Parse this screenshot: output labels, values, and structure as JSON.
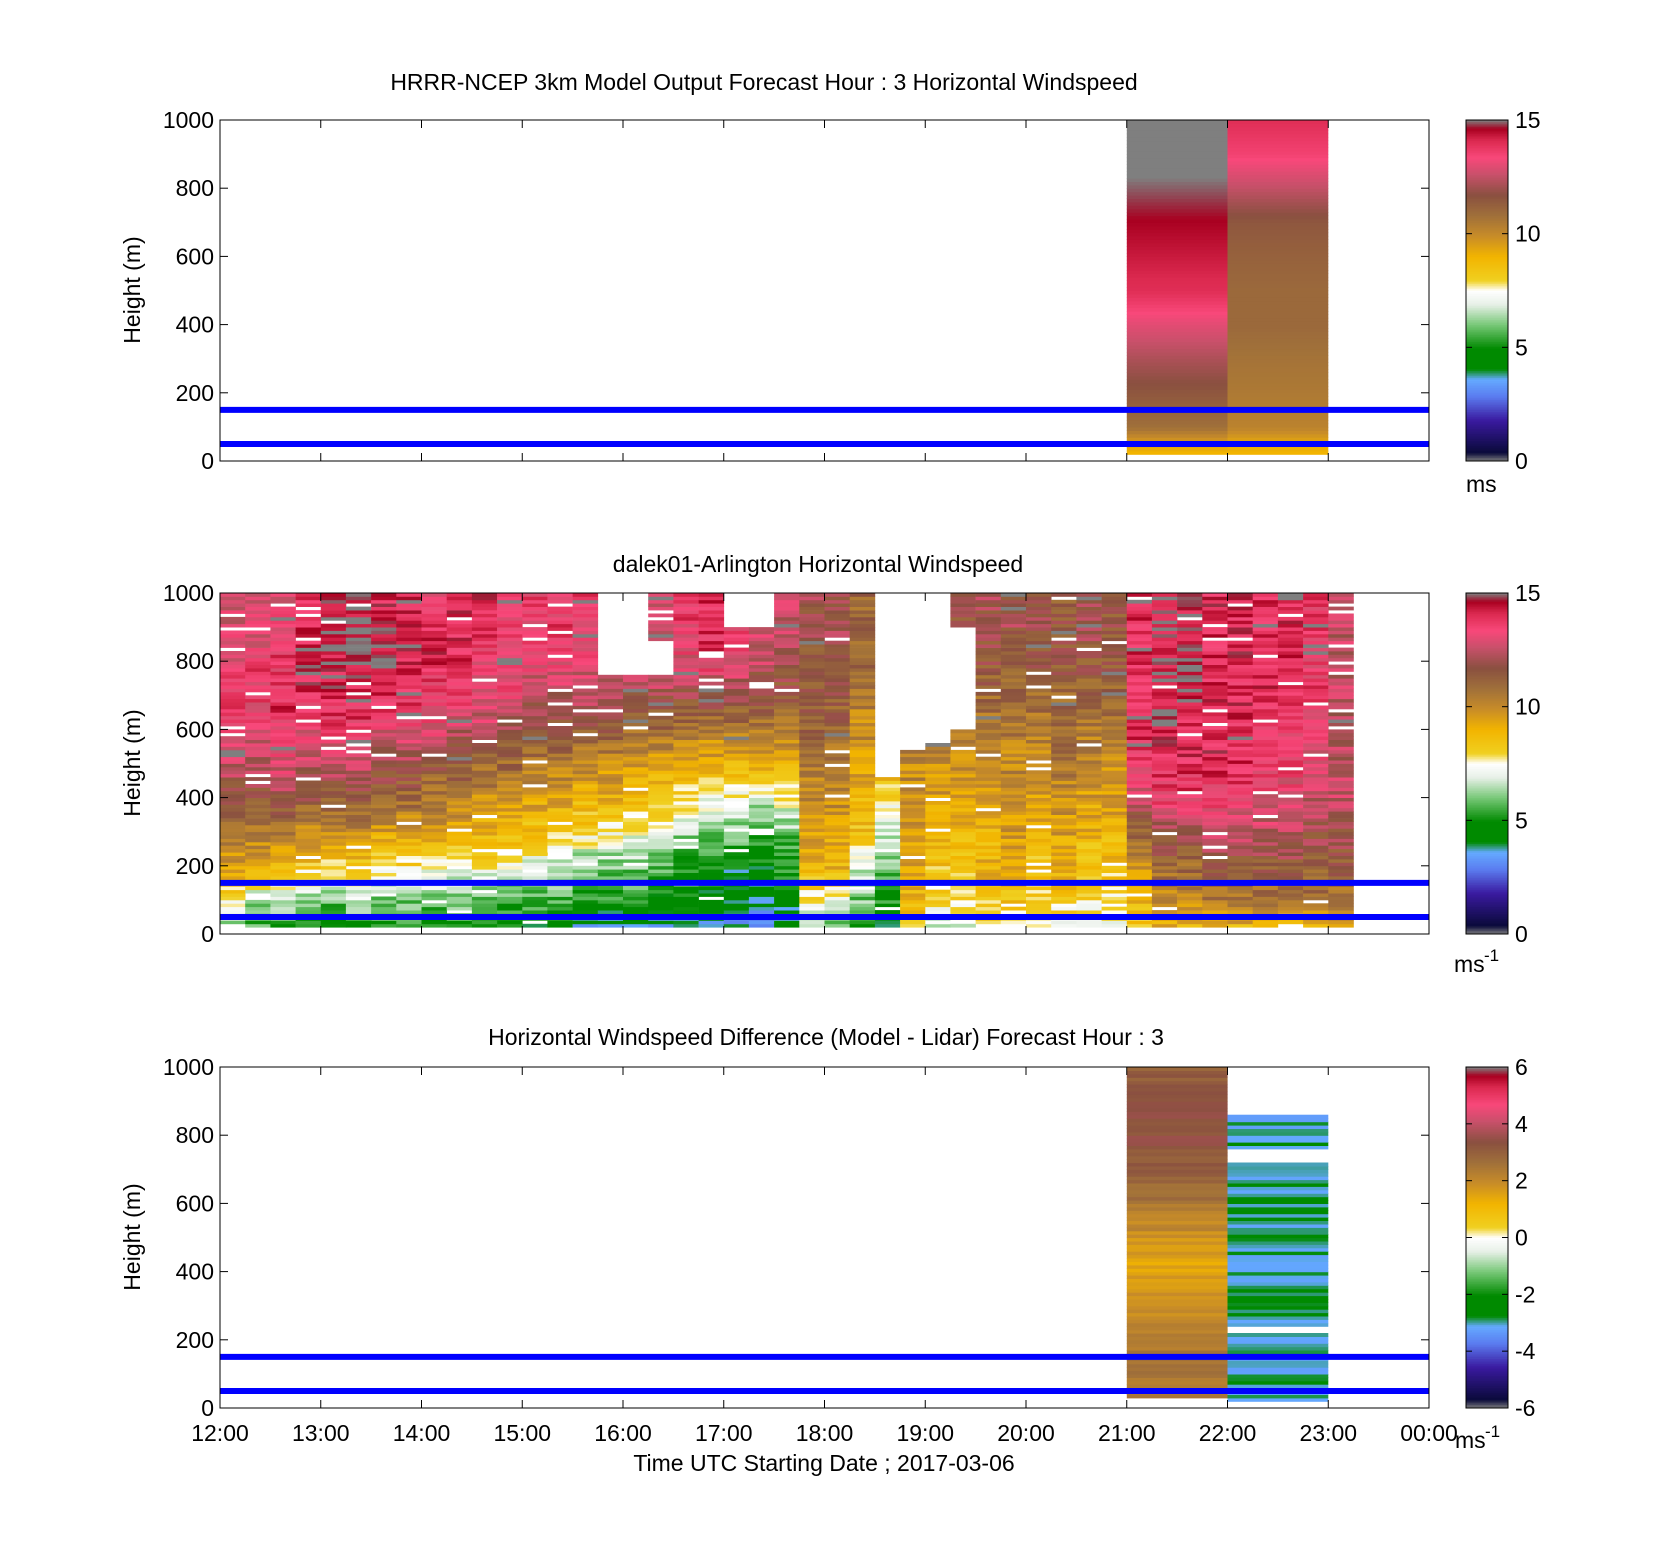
{
  "figure": {
    "xlabel": "Time UTC  Starting Date ; 2017-03-06",
    "xticks": [
      "12:00",
      "13:00",
      "14:00",
      "15:00",
      "16:00",
      "17:00",
      "18:00",
      "19:00",
      "20:00",
      "21:00",
      "22:00",
      "23:00",
      "00:00"
    ],
    "reference_lines_m": [
      50,
      150
    ],
    "reference_line_color": "#0000ff"
  },
  "chart_data": [
    {
      "type": "heatmap",
      "title": "HRRR-NCEP 3km Model Output   Forecast Hour : 3 Horizontal Windspeed",
      "ylabel": "Height (m)",
      "xlim_hours_utc": [
        12,
        24
      ],
      "ylim": [
        0,
        1000
      ],
      "yticks": [
        0,
        200,
        400,
        600,
        800,
        1000
      ],
      "colorbar": {
        "range": [
          0,
          15
        ],
        "ticks": [
          "0",
          "5",
          "10",
          "15"
        ],
        "unit": "ms"
      },
      "columns": [
        {
          "start_utc": "21:00",
          "end_utc": "22:00",
          "profile": [
            [
              25,
              9
            ],
            [
              55,
              9.5
            ],
            [
              100,
              10.8
            ],
            [
              200,
              11.5
            ],
            [
              300,
              12.2
            ],
            [
              400,
              13
            ],
            [
              500,
              14
            ],
            [
              600,
              14.3
            ],
            [
              700,
              14.6
            ],
            [
              800,
              14.9
            ],
            [
              900,
              15.2
            ],
            [
              1000,
              15.2
            ]
          ]
        },
        {
          "start_utc": "22:00",
          "end_utc": "23:00",
          "profile": [
            [
              25,
              9
            ],
            [
              55,
              9.3
            ],
            [
              100,
              10.2
            ],
            [
              200,
              10.5
            ],
            [
              300,
              10.7
            ],
            [
              400,
              11
            ],
            [
              500,
              11
            ],
            [
              600,
              11.2
            ],
            [
              700,
              11.5
            ],
            [
              800,
              12.5
            ],
            [
              900,
              13.5
            ],
            [
              1000,
              14
            ]
          ]
        }
      ]
    },
    {
      "type": "heatmap",
      "title": "dalek01-Arlington  Horizontal Windspeed",
      "ylabel": "Height (m)",
      "xlim_hours_utc": [
        12,
        24
      ],
      "ylim": [
        0,
        1000
      ],
      "yticks": [
        0,
        200,
        400,
        600,
        800,
        1000
      ],
      "colorbar": {
        "range": [
          0,
          15
        ],
        "ticks": [
          "0",
          "5",
          "10",
          "15"
        ],
        "unit": "ms",
        "unit_exponent": "-1"
      },
      "time_step_minutes": 15,
      "top_height_m": [
        1000,
        1000,
        1000,
        1000,
        1000,
        1000,
        1000,
        1000,
        1000,
        1000,
        1000,
        1000,
        1000,
        1000,
        1000,
        1000,
        1000,
        1000,
        1000,
        1000,
        1000,
        1000,
        1000,
        1000,
        1000,
        1000,
        1000,
        1000,
        1000,
        1000,
        1000,
        1000,
        1000,
        1000,
        1000,
        1000,
        1000,
        1000,
        1000,
        1000,
        1000,
        1000,
        1000,
        1000,
        1000
      ],
      "data_gaps_m": [
        [
          15,
          760,
          1000
        ],
        [
          16,
          760,
          1000
        ],
        [
          17,
          760,
          860
        ],
        [
          20,
          900,
          1000
        ],
        [
          21,
          900,
          1000
        ],
        [
          26,
          460,
          1000
        ],
        [
          27,
          540,
          1000
        ],
        [
          28,
          560,
          1000
        ],
        [
          29,
          600,
          900
        ]
      ],
      "profile_knots_m": [
        25,
        100,
        200,
        300,
        400,
        500,
        600,
        700,
        800,
        900,
        1000
      ],
      "profiles": [
        [
          6,
          7.5,
          9.5,
          10.5,
          11.5,
          12.5,
          13.5,
          13.5,
          13,
          13,
          12.5
        ],
        [
          5.5,
          6.5,
          9,
          10.5,
          11.5,
          12.5,
          13,
          13.5,
          13.5,
          13,
          12.5
        ],
        [
          5.5,
          6.5,
          9,
          10.5,
          12,
          13,
          13.5,
          14,
          13.5,
          13.5,
          13
        ],
        [
          5,
          6,
          8.5,
          10,
          11.5,
          12.5,
          13,
          14,
          14.5,
          14,
          13.5
        ],
        [
          5,
          6,
          8,
          10,
          11.5,
          12.5,
          13.5,
          14,
          14.5,
          14.5,
          14
        ],
        [
          5,
          6.5,
          8.5,
          10,
          11.5,
          12.5,
          13.5,
          14,
          14.5,
          14.5,
          14.5
        ],
        [
          5,
          6,
          8,
          9.5,
          11,
          12,
          13,
          14,
          14.5,
          14.5,
          14
        ],
        [
          5,
          6,
          8,
          9.5,
          11,
          12,
          13,
          14,
          14,
          14,
          14
        ],
        [
          5,
          6,
          7.5,
          9.5,
          10.5,
          11.5,
          13,
          13.5,
          14,
          14,
          13.5
        ],
        [
          5,
          6,
          7.5,
          9,
          10.5,
          11.5,
          12.5,
          13.5,
          14,
          14,
          14
        ],
        [
          5,
          5.5,
          7.5,
          9,
          10,
          11,
          12.5,
          13,
          13.5,
          14,
          14
        ],
        [
          5,
          5.5,
          7,
          9,
          10,
          11,
          12,
          13,
          13.5,
          13.5,
          13.5
        ],
        [
          4.5,
          5.5,
          7,
          8.5,
          9.5,
          10.5,
          11.5,
          12.5,
          13,
          13.5,
          13.5
        ],
        [
          4.5,
          5.5,
          6.5,
          8.5,
          9.5,
          10.5,
          11.5,
          12.5,
          13,
          13.5,
          13.5
        ],
        [
          4,
          5,
          6,
          8,
          9,
          10,
          11.5,
          12.5,
          13,
          13.5,
          13.5
        ],
        [
          4,
          5,
          6,
          7.5,
          9,
          10,
          11.5,
          12.5,
          13,
          13,
          13
        ],
        [
          4,
          5,
          6,
          7.5,
          8.5,
          9.5,
          11,
          12,
          13,
          13,
          13
        ],
        [
          4,
          4.5,
          5.5,
          7,
          8.5,
          9.5,
          11,
          12,
          13,
          13,
          13
        ],
        [
          4,
          4.5,
          5,
          6.5,
          8,
          9,
          10.5,
          12,
          13,
          13.5,
          13.5
        ],
        [
          3.5,
          4.5,
          5,
          6,
          7.5,
          9,
          10.5,
          12,
          13.5,
          14,
          14
        ],
        [
          3.5,
          4,
          4.5,
          6,
          7.5,
          9,
          10.5,
          12,
          13,
          13.5,
          13.5
        ],
        [
          3.5,
          4,
          4.5,
          5.5,
          7,
          9,
          10.5,
          11.5,
          12.5,
          13,
          13
        ],
        [
          4,
          4.5,
          5,
          6,
          7.5,
          9,
          10.5,
          11.5,
          12,
          12.5,
          12.5
        ],
        [
          6,
          7.5,
          9,
          9.5,
          10,
          10.5,
          11,
          11.5,
          11.5,
          12,
          12
        ],
        [
          6,
          7.5,
          9,
          9.5,
          10,
          10.5,
          11,
          11.5,
          12,
          12,
          12
        ],
        [
          5,
          6,
          7,
          8.5,
          9,
          9.5,
          10,
          10.5,
          11,
          11,
          11
        ],
        [
          4,
          5,
          6,
          7,
          8,
          9,
          9.5,
          10,
          10,
          10,
          10
        ],
        [
          8,
          9,
          9.5,
          9.5,
          10,
          10,
          10.5,
          11,
          11,
          11.5,
          11.5
        ],
        [
          7,
          8,
          8.5,
          9,
          9.5,
          10,
          10.5,
          11,
          11.5,
          12,
          12
        ],
        [
          7,
          8,
          8.5,
          9,
          9.5,
          10,
          10.5,
          11,
          11,
          11.5,
          11.5
        ],
        [
          8,
          8.5,
          9,
          9,
          9.5,
          10,
          10.5,
          11,
          11.5,
          12,
          12
        ],
        [
          8,
          8.5,
          9,
          9.5,
          10,
          10,
          10.5,
          11,
          11.5,
          12,
          12
        ],
        [
          7,
          8,
          8.5,
          9,
          9.5,
          10,
          10.5,
          11,
          11.5,
          12,
          12
        ],
        [
          7,
          8.5,
          9,
          9.5,
          10,
          10.5,
          11,
          11,
          11.5,
          11.5,
          11.5
        ],
        [
          7,
          8,
          8.5,
          9,
          9.5,
          10,
          10.5,
          11,
          11.5,
          12,
          12
        ],
        [
          7,
          8,
          8.5,
          9,
          9.5,
          10,
          10.5,
          11,
          11.5,
          11.5,
          11.5
        ],
        [
          8,
          9,
          10,
          11,
          12.5,
          13.5,
          14,
          14,
          14,
          14,
          14
        ],
        [
          9,
          10,
          11,
          12,
          13.5,
          14,
          14.5,
          14.5,
          14.5,
          14.5,
          14.5
        ],
        [
          9,
          10,
          11,
          12,
          13.5,
          14,
          14,
          14.5,
          14.5,
          14.5,
          14.5
        ],
        [
          9,
          10.5,
          11.5,
          12.5,
          13.5,
          14,
          14,
          14,
          14,
          14,
          14
        ],
        [
          9,
          10.5,
          11.5,
          12.5,
          13.5,
          14,
          14,
          14,
          14,
          14,
          14
        ],
        [
          9,
          10.5,
          11.5,
          12.5,
          13,
          13.5,
          13.5,
          14,
          14,
          14,
          14
        ],
        [
          9,
          10.5,
          11.5,
          12.5,
          13,
          13.5,
          13.5,
          14,
          14,
          14,
          14
        ],
        [
          9,
          10.5,
          11.5,
          12,
          12.5,
          13,
          13,
          13.5,
          13.5,
          13.5,
          13.5
        ],
        [
          9,
          10.5,
          11.5,
          12,
          12.5,
          12.5,
          12.5,
          12.5,
          12.5,
          12.5,
          12.5
        ]
      ]
    },
    {
      "type": "heatmap",
      "title": "Horizontal Windspeed Difference (Model - Lidar) Forecast Hour : 3",
      "ylabel": "Height (m)",
      "xlabel": "Time UTC  Starting Date ; 2017-03-06",
      "xlim_hours_utc": [
        12,
        24
      ],
      "ylim": [
        0,
        1000
      ],
      "yticks": [
        0,
        200,
        400,
        600,
        800,
        1000
      ],
      "colorbar": {
        "range": [
          -6,
          6
        ],
        "ticks": [
          "-6",
          "-4",
          "-2",
          "0",
          "2",
          "4",
          "6"
        ],
        "unit": "ms",
        "unit_exponent": "-1"
      },
      "columns": [
        {
          "start_utc": "21:00",
          "end_utc": "22:00",
          "bottom_m": 30,
          "top_m": 1000,
          "profile": [
            [
              30,
              2.5
            ],
            [
              150,
              2.5
            ],
            [
              300,
              1.8
            ],
            [
              450,
              1.5
            ],
            [
              600,
              2.5
            ],
            [
              750,
              3.2
            ],
            [
              850,
              3.5
            ],
            [
              1000,
              3
            ]
          ]
        },
        {
          "start_utc": "22:00",
          "end_utc": "23:00",
          "bottom_m": 20,
          "top_m": 860,
          "gaps_m": [
            [
              220,
              240
            ],
            [
              720,
              760
            ]
          ],
          "profile": [
            [
              20,
              -3
            ],
            [
              200,
              -3
            ],
            [
              300,
              -2.8
            ],
            [
              400,
              -3
            ],
            [
              500,
              -3
            ],
            [
              600,
              -2.8
            ],
            [
              700,
              -3
            ],
            [
              860,
              -3
            ]
          ]
        }
      ]
    }
  ]
}
